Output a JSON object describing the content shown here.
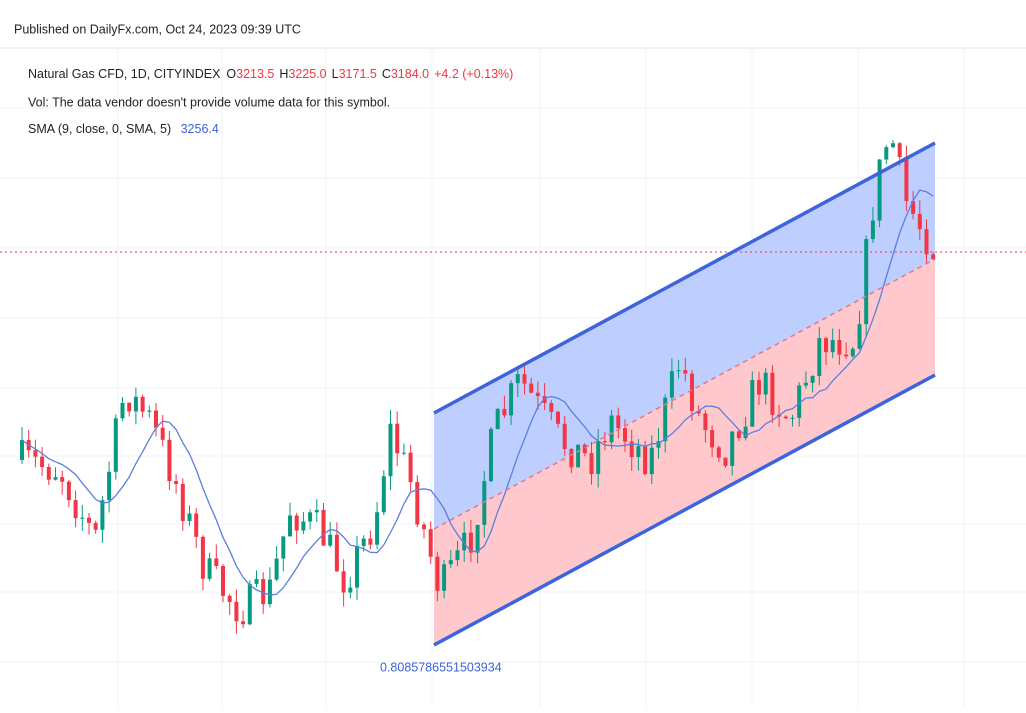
{
  "header": {
    "published": "Published on DailyFx.com, Oct 24, 2023 09:39 UTC"
  },
  "legend": {
    "symbol": "Natural Gas CFD, 1D, CITYINDEX",
    "ohlc": [
      {
        "label": "O",
        "value": "3213.5"
      },
      {
        "label": "H",
        "value": "3225.0"
      },
      {
        "label": "L",
        "value": "3171.5"
      },
      {
        "label": "C",
        "value": "3184.0"
      }
    ],
    "change": "+4.2 (+0.13%)",
    "volume": "Vol: The data vendor doesn't provide volume data for this symbol.",
    "sma_label": "SMA (9, close, 0, SMA, 5)",
    "sma_value": "3256.4"
  },
  "channel_label": "0.8085786551503934"
}
